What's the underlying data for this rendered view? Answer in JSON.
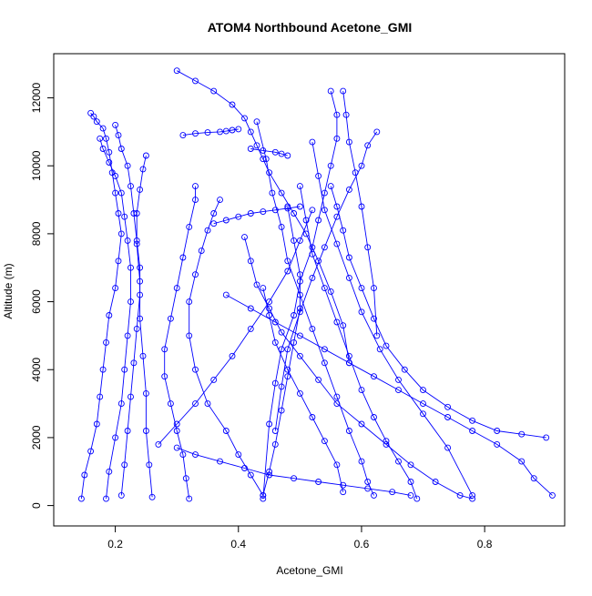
{
  "chart_data": {
    "type": "scatter",
    "title": "ATOM4 Northbound Acetone_GMI",
    "xlabel": "Acetone_GMI",
    "ylabel": "Altitude (m)",
    "xlim": [
      0.1,
      0.93
    ],
    "ylim": [
      -600,
      13300
    ],
    "x_ticks": [
      0.2,
      0.4,
      0.6,
      0.8
    ],
    "x_tick_labels": [
      "0.2",
      "0.4",
      "0.6",
      "0.8"
    ],
    "y_ticks": [
      0,
      2000,
      4000,
      6000,
      8000,
      10000,
      12000
    ],
    "y_tick_labels": [
      "0",
      "2000",
      "4000",
      "6000",
      "8000",
      "10000",
      "12000"
    ],
    "grid": false,
    "legend": "none",
    "marker": "open-circle",
    "line": true,
    "color": "#0000ff",
    "series": [
      {
        "x": [
          0.145,
          0.15,
          0.16,
          0.17,
          0.175,
          0.18,
          0.185,
          0.19,
          0.2,
          0.205,
          0.21,
          0.205,
          0.2,
          0.195,
          0.19,
          0.185,
          0.18,
          0.17,
          0.165,
          0.16
        ],
        "y": [
          200,
          900,
          1600,
          2400,
          3200,
          4000,
          4800,
          5600,
          6400,
          7200,
          8000,
          8600,
          9200,
          9800,
          10400,
          10800,
          11100,
          11300,
          11450,
          11550
        ]
      },
      {
        "x": [
          0.185,
          0.19,
          0.2,
          0.21,
          0.215,
          0.22,
          0.225,
          0.225,
          0.22,
          0.215,
          0.21,
          0.2,
          0.19,
          0.18,
          0.175
        ],
        "y": [
          200,
          1000,
          2000,
          3000,
          4000,
          5000,
          6000,
          7000,
          7800,
          8500,
          9200,
          9700,
          10100,
          10500,
          10800
        ]
      },
      {
        "x": [
          0.21,
          0.215,
          0.22,
          0.225,
          0.23,
          0.235,
          0.24,
          0.24,
          0.235,
          0.23,
          0.225,
          0.22,
          0.21,
          0.205,
          0.2
        ],
        "y": [
          300,
          1200,
          2200,
          3200,
          4200,
          5200,
          6200,
          7000,
          7800,
          8600,
          9400,
          10000,
          10500,
          10900,
          11200
        ]
      },
      {
        "x": [
          0.26,
          0.255,
          0.25,
          0.25,
          0.245,
          0.24,
          0.24,
          0.235,
          0.235,
          0.24,
          0.245,
          0.25
        ],
        "y": [
          250,
          1200,
          2200,
          3300,
          4400,
          5500,
          6600,
          7700,
          8600,
          9300,
          9900,
          10300
        ]
      },
      {
        "x": [
          0.32,
          0.315,
          0.31,
          0.3,
          0.29,
          0.28,
          0.28,
          0.29,
          0.3,
          0.31,
          0.32,
          0.33,
          0.33
        ],
        "y": [
          200,
          800,
          1500,
          2200,
          3000,
          3800,
          4600,
          5500,
          6400,
          7300,
          8200,
          9000,
          9400
        ]
      },
      {
        "x": [
          0.3,
          0.33,
          0.36,
          0.39,
          0.41,
          0.42,
          0.43,
          0.44,
          0.45,
          0.47,
          0.49,
          0.51,
          0.53,
          0.55,
          0.57,
          0.58
        ],
        "y": [
          12800,
          12500,
          12200,
          11800,
          11400,
          11000,
          10600,
          10200,
          9800,
          9200,
          8600,
          8000,
          7200,
          6300,
          5300,
          4200
        ]
      },
      {
        "x": [
          0.37,
          0.36,
          0.35,
          0.34,
          0.33,
          0.32,
          0.32,
          0.33,
          0.35,
          0.38,
          0.4,
          0.42,
          0.44
        ],
        "y": [
          9000,
          8600,
          8100,
          7500,
          6800,
          6000,
          5000,
          4000,
          3000,
          2200,
          1500,
          900,
          300
        ]
      },
      {
        "x": [
          0.36,
          0.38,
          0.4,
          0.42,
          0.44,
          0.46,
          0.48,
          0.5
        ],
        "y": [
          8300,
          8400,
          8500,
          8600,
          8650,
          8700,
          8750,
          8800
        ]
      },
      {
        "x": [
          0.31,
          0.33,
          0.35,
          0.37,
          0.38,
          0.39,
          0.4
        ],
        "y": [
          10900,
          10950,
          10980,
          11000,
          11020,
          11050,
          11080
        ]
      },
      {
        "x": [
          0.42,
          0.44,
          0.46,
          0.47,
          0.48
        ],
        "y": [
          10500,
          10450,
          10400,
          10350,
          10300
        ]
      },
      {
        "x": [
          0.43,
          0.445,
          0.455,
          0.47,
          0.48,
          0.5,
          0.52,
          0.54,
          0.56,
          0.58,
          0.6,
          0.61,
          0.62
        ],
        "y": [
          11300,
          10200,
          9200,
          8200,
          7200,
          6200,
          5200,
          4200,
          3200,
          2200,
          1300,
          700,
          300
        ]
      },
      {
        "x": [
          0.55,
          0.56,
          0.56,
          0.55,
          0.54,
          0.53,
          0.52,
          0.5,
          0.49,
          0.47,
          0.46,
          0.45,
          0.44
        ],
        "y": [
          12200,
          11500,
          10800,
          10000,
          9200,
          8400,
          7600,
          6600,
          5600,
          4600,
          3600,
          2400,
          200
        ]
      },
      {
        "x": [
          0.57,
          0.575,
          0.58,
          0.59,
          0.6,
          0.61,
          0.62,
          0.625
        ],
        "y": [
          12200,
          11500,
          10700,
          9800,
          8800,
          7600,
          6400,
          5000
        ]
      },
      {
        "x": [
          0.625,
          0.61,
          0.6,
          0.58,
          0.56,
          0.54,
          0.52,
          0.5,
          0.48,
          0.47,
          0.46
        ],
        "y": [
          11000,
          10600,
          10000,
          9300,
          8500,
          7600,
          6700,
          5700,
          4600,
          3500,
          2200
        ]
      },
      {
        "x": [
          0.5,
          0.51,
          0.52,
          0.54,
          0.56,
          0.58,
          0.6,
          0.62,
          0.64,
          0.66,
          0.68,
          0.69
        ],
        "y": [
          9400,
          8400,
          7400,
          6400,
          5400,
          4400,
          3400,
          2600,
          1900,
          1300,
          700,
          200
        ]
      },
      {
        "x": [
          0.52,
          0.53,
          0.54,
          0.56,
          0.58,
          0.6,
          0.63,
          0.66,
          0.7,
          0.74,
          0.78
        ],
        "y": [
          10700,
          9700,
          8700,
          7700,
          6700,
          5700,
          4600,
          3700,
          2700,
          1700,
          300
        ]
      },
      {
        "x": [
          0.55,
          0.56,
          0.57,
          0.58,
          0.6,
          0.62,
          0.64,
          0.67,
          0.7,
          0.74,
          0.78,
          0.82,
          0.86,
          0.9
        ],
        "y": [
          9400,
          8800,
          8100,
          7300,
          6400,
          5500,
          4700,
          4000,
          3400,
          2900,
          2500,
          2200,
          2100,
          2000
        ]
      },
      {
        "x": [
          0.38,
          0.42,
          0.46,
          0.5,
          0.54,
          0.58,
          0.62,
          0.66,
          0.7,
          0.74,
          0.78,
          0.82,
          0.86,
          0.88,
          0.91
        ],
        "y": [
          6200,
          5800,
          5400,
          5000,
          4600,
          4200,
          3800,
          3400,
          3000,
          2600,
          2200,
          1800,
          1300,
          800,
          300
        ]
      },
      {
        "x": [
          0.48,
          0.49,
          0.5,
          0.5,
          0.49,
          0.48,
          0.47,
          0.46,
          0.45,
          0.44
        ],
        "y": [
          8800,
          7800,
          6800,
          5800,
          4800,
          3800,
          2800,
          1800,
          1000,
          300
        ]
      },
      {
        "x": [
          0.41,
          0.42,
          0.43,
          0.45,
          0.47,
          0.5,
          0.53,
          0.56,
          0.6,
          0.64,
          0.68,
          0.72,
          0.76,
          0.78
        ],
        "y": [
          7900,
          7200,
          6500,
          5800,
          5100,
          4400,
          3700,
          3000,
          2400,
          1800,
          1200,
          700,
          300,
          200
        ]
      },
      {
        "x": [
          0.27,
          0.3,
          0.33,
          0.36,
          0.39,
          0.42,
          0.45,
          0.48,
          0.5,
          0.52
        ],
        "y": [
          1800,
          2400,
          3000,
          3700,
          4400,
          5200,
          6000,
          6900,
          7800,
          8700
        ]
      },
      {
        "x": [
          0.3,
          0.33,
          0.37,
          0.41,
          0.45,
          0.49,
          0.53,
          0.57,
          0.61,
          0.65,
          0.68
        ],
        "y": [
          1700,
          1500,
          1300,
          1100,
          900,
          800,
          700,
          600,
          500,
          400,
          300
        ]
      },
      {
        "x": [
          0.44,
          0.45,
          0.46,
          0.48,
          0.5,
          0.52,
          0.54,
          0.56,
          0.57
        ],
        "y": [
          6400,
          5600,
          4800,
          4000,
          3300,
          2600,
          1900,
          1200,
          400
        ]
      }
    ]
  }
}
